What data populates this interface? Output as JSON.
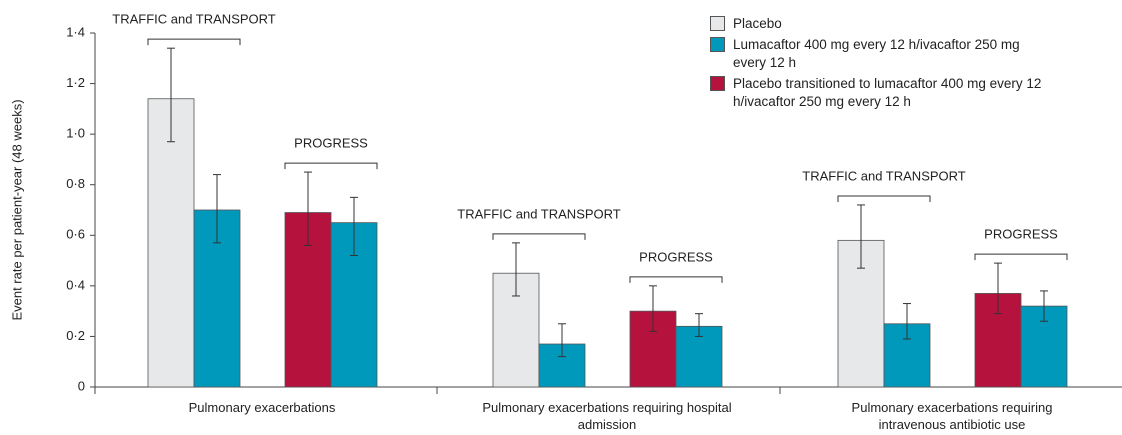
{
  "chart_data": {
    "type": "bar",
    "ylabel": "Event rate per patient-year (48 weeks)",
    "categories": [
      "Pulmonary exacerbations",
      "Pulmonary exacerbations requiring hospital admission",
      "Pulmonary exacerbations requiring intravenous antibiotic use"
    ],
    "studies": [
      {
        "name": "TRAFFIC and TRANSPORT",
        "series": [
          {
            "name": "Placebo",
            "color": "#e6e8ea",
            "values": [
              1.14,
              0.45,
              0.58
            ],
            "lower": [
              0.97,
              0.36,
              0.47
            ],
            "upper": [
              1.34,
              0.57,
              0.72
            ]
          },
          {
            "name": "Lumacaftor 400 mg every 12 h/ivacaftor 250 mg every 12 h",
            "color": "#0099bb",
            "values": [
              0.7,
              0.17,
              0.25
            ],
            "lower": [
              0.57,
              0.12,
              0.19
            ],
            "upper": [
              0.84,
              0.25,
              0.33
            ]
          }
        ]
      },
      {
        "name": "PROGRESS",
        "series": [
          {
            "name": "Placebo transitioned to lumacaftor 400 mg every 12 h/ivacaftor 250 mg every 12 h",
            "color": "#b5123e",
            "values": [
              0.69,
              0.3,
              0.37
            ],
            "lower": [
              0.56,
              0.22,
              0.29
            ],
            "upper": [
              0.85,
              0.4,
              0.49
            ]
          },
          {
            "color": "#0099bb",
            "values": [
              0.65,
              0.24,
              0.32
            ],
            "lower": [
              0.52,
              0.2,
              0.26
            ],
            "upper": [
              0.75,
              0.29,
              0.38
            ]
          }
        ]
      }
    ],
    "ylim": [
      0,
      1.4
    ],
    "yticks": [
      0,
      {
        "value": 0.2,
        "label": "0·2"
      },
      {
        "value": 0.4,
        "label": "0·4"
      },
      {
        "value": 0.6,
        "label": "0·6"
      },
      {
        "value": 0.8,
        "label": "0·8"
      },
      {
        "value": 1.0,
        "label": "1·0"
      },
      {
        "value": 1.2,
        "label": "1·2"
      },
      {
        "value": 1.4,
        "label": "1·4"
      }
    ]
  }
}
